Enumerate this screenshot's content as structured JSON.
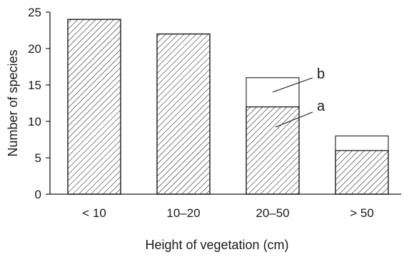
{
  "chart_data": {
    "type": "bar",
    "stacked": true,
    "title": "",
    "xlabel": "Height of vegetation (cm)",
    "ylabel": "Number of species",
    "ylim": [
      0,
      25
    ],
    "yticks": [
      "0",
      "5",
      "10",
      "15",
      "20",
      "25"
    ],
    "categories": [
      "< 10",
      "10–20",
      "20–50",
      "> 50"
    ],
    "series": [
      {
        "name": "a",
        "fill": "hatched",
        "values": [
          24,
          22,
          12,
          6
        ]
      },
      {
        "name": "b",
        "fill": "plain",
        "values": [
          0,
          0,
          4,
          2
        ]
      }
    ],
    "annotations": [
      {
        "text": "a"
      },
      {
        "text": "b"
      }
    ],
    "grid": false,
    "colors": {
      "stroke": "#1a1a1a",
      "hatch": "#1a1a1a",
      "background": "#ffffff"
    }
  }
}
